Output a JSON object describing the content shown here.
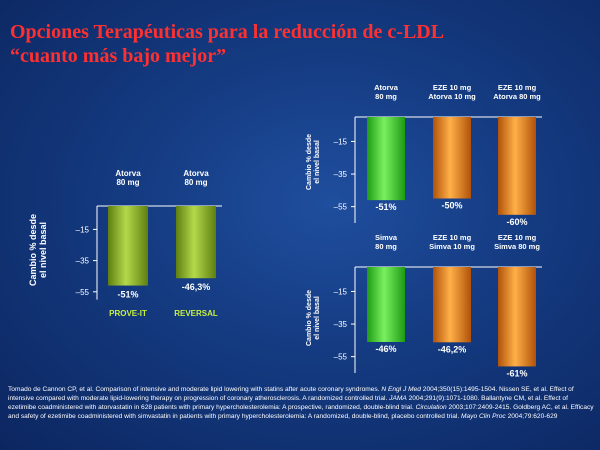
{
  "title": {
    "line1": "Opciones Terapéuticas para la reducción de c-LDL",
    "line2": "“cuanto más bajo mejor”"
  },
  "colors": {
    "green": "#7fa81e",
    "bright_green": "#3fd62a",
    "orange": "#e07a10",
    "title_red": "#ff3030"
  },
  "chart_data": [
    {
      "type": "bar",
      "ylabel_lines": [
        "Cambio % desde",
        "el nivel basal"
      ],
      "ylim": [
        -60,
        0
      ],
      "yticks": [
        "–15",
        "–35",
        "–55"
      ],
      "ytick_values": [
        -15,
        -35,
        -55
      ],
      "categories": [
        [
          "Atorva",
          "80 mg"
        ],
        [
          "Atorva",
          "80 mg"
        ]
      ],
      "values": [
        -51,
        -46.3
      ],
      "value_labels": [
        "-51%",
        "-46,3%"
      ],
      "trial_labels": [
        "PROVE-IT",
        "REVERSAL"
      ],
      "colors": [
        "green",
        "green"
      ]
    },
    {
      "type": "bar",
      "ylabel_lines": [
        "Cambio % desde",
        "el nivel basal"
      ],
      "ylim": [
        -65,
        0
      ],
      "yticks": [
        "–15",
        "–35",
        "–55"
      ],
      "ytick_values": [
        -15,
        -35,
        -55
      ],
      "categories": [
        [
          "Atorva",
          "80 mg"
        ],
        [
          "EZE 10 mg",
          "Atorva 10 mg"
        ],
        [
          "EZE 10 mg",
          "Atorva 80 mg"
        ]
      ],
      "values": [
        -51,
        -50,
        -60
      ],
      "value_labels": [
        "-51%",
        "-50%",
        "-60%"
      ],
      "colors": [
        "bright_green",
        "orange",
        "orange"
      ]
    },
    {
      "type": "bar",
      "ylabel_lines": [
        "Cambio % desde",
        "el nivel basal"
      ],
      "ylim": [
        -65,
        0
      ],
      "yticks": [
        "–15",
        "–35",
        "–55"
      ],
      "ytick_values": [
        -15,
        -35,
        -55
      ],
      "categories": [
        [
          "Simva",
          "80 mg"
        ],
        [
          "EZE 10 mg",
          "Simva 10 mg"
        ],
        [
          "EZE 10 mg",
          "Simva 80 mg"
        ]
      ],
      "values": [
        -46,
        -46.2,
        -61
      ],
      "value_labels": [
        "-46%",
        "-46,2%",
        "-61%"
      ],
      "colors": [
        "bright_green",
        "orange",
        "orange"
      ]
    }
  ],
  "footnote": [
    {
      "t": "Tomado de Cannon CP, et al. Comparison of intensive and moderate lipid lowering with statins after acute coronary syndromes. "
    },
    {
      "t": "N Engl J Med",
      "i": true
    },
    {
      "t": " 2004;350(15):1495-1504. Nissen SE, et al. Effect of intensive compared with moderate lipid-lowering therapy on progression of coronary atherosclerosis. A randomized controlled trial. "
    },
    {
      "t": "JAMA",
      "i": true
    },
    {
      "t": " 2004;291(9):1071-1080. Ballantyne CM, et al. Effect of ezetimibe coadministered with atorvastatin in 628 patients with primary hypercholesterolemia: A prospective, randomized, double-blind trial. "
    },
    {
      "t": "Circulation",
      "i": true
    },
    {
      "t": " 2003;107:2409-2415. Goldberg AC, et al. Efficacy and safety of ezetimibe coadministered with simvastatin in patients with primary hypercholesterolemia: A randomized, double-blind, placebo controlled trial. "
    },
    {
      "t": "Mayo Clin Proc",
      "i": true
    },
    {
      "t": " 2004;79:620-629"
    }
  ]
}
